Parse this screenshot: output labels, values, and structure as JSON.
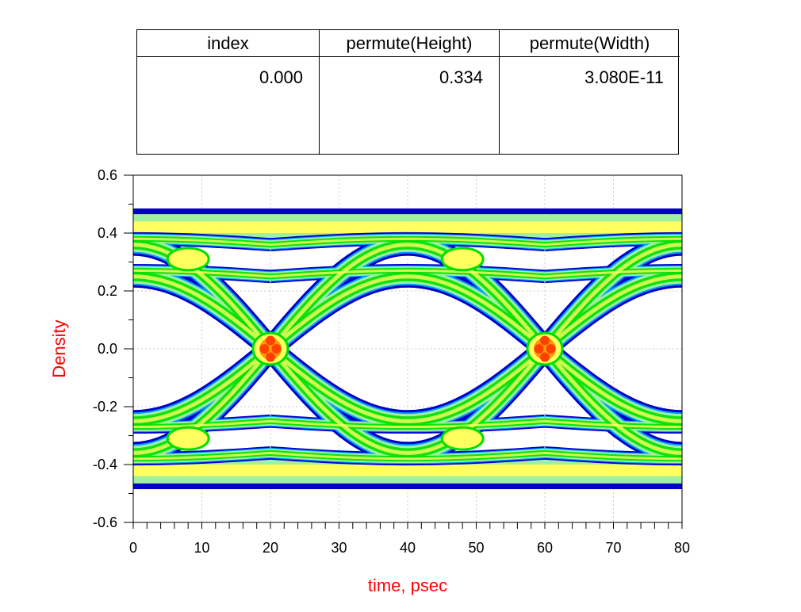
{
  "table": {
    "columns": [
      "index",
      "permute(Height)",
      "permute(Width)"
    ],
    "rows": [
      [
        "0.000",
        "0.334",
        "3.080E-11"
      ]
    ]
  },
  "chart_data": {
    "type": "heatmap",
    "title": "",
    "xlabel": "time, psec",
    "ylabel": "Density",
    "xlim": [
      0,
      80
    ],
    "ylim": [
      -0.6,
      0.6
    ],
    "x_ticks": [
      "0",
      "10",
      "20",
      "30",
      "40",
      "50",
      "60",
      "70",
      "80"
    ],
    "y_ticks": [
      "-0.6",
      "-0.4",
      "-0.2",
      "0.0",
      "0.2",
      "0.4",
      "0.6"
    ],
    "grid": true,
    "ui_period_ps": 40,
    "crossing_times_ps": [
      20,
      60
    ],
    "rail_levels": [
      -0.48,
      -0.36,
      -0.25,
      0.25,
      0.36,
      0.48
    ],
    "eye_height": 0.334,
    "eye_width_s": 3.08e-11,
    "density_colors": [
      "#0000c8",
      "#00a0ff",
      "#00e000",
      "#a0f0a0",
      "#ffff60",
      "#ffa000",
      "#ff4000"
    ],
    "label_color": "#ff0000"
  }
}
